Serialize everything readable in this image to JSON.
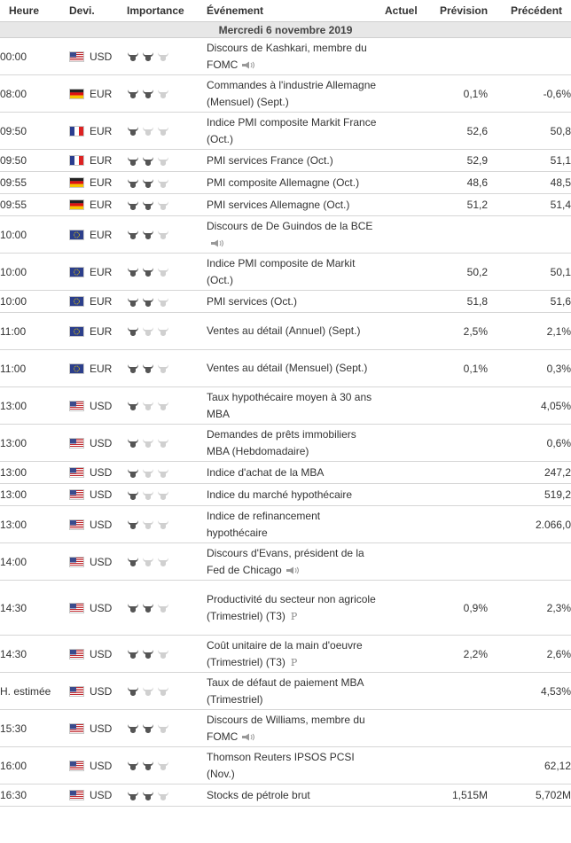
{
  "header": {
    "time": "Heure",
    "currency": "Devi.",
    "importance": "Importance",
    "event": "Événement",
    "actual": "Actuel",
    "forecast": "Prévision",
    "previous": "Précédent"
  },
  "date_label": "Mercredi 6 novembre 2019",
  "events": [
    {
      "time": "00:00",
      "flag": "us",
      "currency": "USD",
      "importance": 2,
      "event": "Discours de Kashkari, membre du FOMC",
      "speech": true,
      "prelim": false,
      "actual": "",
      "forecast": "",
      "previous": ""
    },
    {
      "time": "08:00",
      "flag": "de",
      "currency": "EUR",
      "importance": 2,
      "event": "Commandes à l'industrie Allemagne (Mensuel) (Sept.)",
      "speech": false,
      "prelim": false,
      "actual": "",
      "forecast": "0,1%",
      "previous": "-0,6%"
    },
    {
      "time": "09:50",
      "flag": "fr",
      "currency": "EUR",
      "importance": 1,
      "event": "Indice PMI composite Markit France (Oct.)",
      "speech": false,
      "prelim": false,
      "actual": "",
      "forecast": "52,6",
      "previous": "50,8"
    },
    {
      "time": "09:50",
      "flag": "fr",
      "currency": "EUR",
      "importance": 2,
      "event": "PMI services France (Oct.)",
      "speech": false,
      "prelim": false,
      "actual": "",
      "forecast": "52,9",
      "previous": "51,1"
    },
    {
      "time": "09:55",
      "flag": "de",
      "currency": "EUR",
      "importance": 2,
      "event": "PMI composite Allemagne (Oct.)",
      "speech": false,
      "prelim": false,
      "actual": "",
      "forecast": "48,6",
      "previous": "48,5"
    },
    {
      "time": "09:55",
      "flag": "de",
      "currency": "EUR",
      "importance": 2,
      "event": "PMI services Allemagne (Oct.)",
      "speech": false,
      "prelim": false,
      "actual": "",
      "forecast": "51,2",
      "previous": "51,4"
    },
    {
      "time": "10:00",
      "flag": "eu",
      "currency": "EUR",
      "importance": 2,
      "event": "Discours de De Guindos de la BCE",
      "speech": true,
      "prelim": false,
      "actual": "",
      "forecast": "",
      "previous": ""
    },
    {
      "time": "10:00",
      "flag": "eu",
      "currency": "EUR",
      "importance": 2,
      "event": "Indice PMI composite de Markit (Oct.)",
      "speech": false,
      "prelim": false,
      "actual": "",
      "forecast": "50,2",
      "previous": "50,1"
    },
    {
      "time": "10:00",
      "flag": "eu",
      "currency": "EUR",
      "importance": 2,
      "event": "PMI services (Oct.)",
      "speech": false,
      "prelim": false,
      "actual": "",
      "forecast": "51,8",
      "previous": "51,6"
    },
    {
      "time": "11:00",
      "flag": "eu",
      "currency": "EUR",
      "importance": 1,
      "event": "Ventes au détail (Annuel) (Sept.)",
      "speech": false,
      "prelim": false,
      "actual": "",
      "forecast": "2,5%",
      "previous": "2,1%"
    },
    {
      "time": "11:00",
      "flag": "eu",
      "currency": "EUR",
      "importance": 2,
      "event": "Ventes au détail (Mensuel) (Sept.)",
      "speech": false,
      "prelim": false,
      "actual": "",
      "forecast": "0,1%",
      "previous": "0,3%"
    },
    {
      "time": "13:00",
      "flag": "us",
      "currency": "USD",
      "importance": 1,
      "event": "Taux hypothécaire moyen à 30 ans MBA",
      "speech": false,
      "prelim": false,
      "actual": "",
      "forecast": "",
      "previous": "4,05%"
    },
    {
      "time": "13:00",
      "flag": "us",
      "currency": "USD",
      "importance": 1,
      "event": "Demandes de prêts immobiliers MBA (Hebdomadaire)",
      "speech": false,
      "prelim": false,
      "actual": "",
      "forecast": "",
      "previous": "0,6%"
    },
    {
      "time": "13:00",
      "flag": "us",
      "currency": "USD",
      "importance": 1,
      "event": "Indice d'achat de la MBA",
      "speech": false,
      "prelim": false,
      "actual": "",
      "forecast": "",
      "previous": "247,2"
    },
    {
      "time": "13:00",
      "flag": "us",
      "currency": "USD",
      "importance": 1,
      "event": "Indice du marché hypothécaire",
      "speech": false,
      "prelim": false,
      "actual": "",
      "forecast": "",
      "previous": "519,2"
    },
    {
      "time": "13:00",
      "flag": "us",
      "currency": "USD",
      "importance": 1,
      "event": "Indice de refinancement hypothécaire",
      "speech": false,
      "prelim": false,
      "actual": "",
      "forecast": "",
      "previous": "2.066,0"
    },
    {
      "time": "14:00",
      "flag": "us",
      "currency": "USD",
      "importance": 1,
      "event": "Discours d'Evans, président de la Fed de Chicago",
      "speech": true,
      "prelim": false,
      "actual": "",
      "forecast": "",
      "previous": ""
    },
    {
      "time": "14:30",
      "flag": "us",
      "currency": "USD",
      "importance": 2,
      "event": "Productivité du secteur non agricole (Trimestriel) (T3)",
      "speech": false,
      "prelim": true,
      "actual": "",
      "forecast": "0,9%",
      "previous": "2,3%"
    },
    {
      "time": "14:30",
      "flag": "us",
      "currency": "USD",
      "importance": 2,
      "event": "Coût unitaire de la main d'oeuvre (Trimestriel) (T3)",
      "speech": false,
      "prelim": true,
      "actual": "",
      "forecast": "2,2%",
      "previous": "2,6%"
    },
    {
      "time": "H. estimée",
      "flag": "us",
      "currency": "USD",
      "importance": 1,
      "event": "Taux de défaut de paiement MBA (Trimestriel)",
      "speech": false,
      "prelim": false,
      "actual": "",
      "forecast": "",
      "previous": "4,53%"
    },
    {
      "time": "15:30",
      "flag": "us",
      "currency": "USD",
      "importance": 2,
      "event": "Discours de Williams, membre du FOMC",
      "speech": true,
      "prelim": false,
      "actual": "",
      "forecast": "",
      "previous": ""
    },
    {
      "time": "16:00",
      "flag": "us",
      "currency": "USD",
      "importance": 2,
      "event": "Thomson Reuters IPSOS PCSI (Nov.)",
      "speech": false,
      "prelim": false,
      "actual": "",
      "forecast": "",
      "previous": "62,12"
    },
    {
      "time": "16:30",
      "flag": "us",
      "currency": "USD",
      "importance": 2,
      "event": "Stocks de pétrole brut",
      "speech": false,
      "prelim": false,
      "actual": "",
      "forecast": "1,515M",
      "previous": "5,702M"
    }
  ],
  "prelim_marker": "P",
  "colors": {
    "bull_on": "#555555",
    "bull_off": "#d0d0d0",
    "row_border": "#d6d6d6",
    "date_bg": "#e7e7e7"
  }
}
